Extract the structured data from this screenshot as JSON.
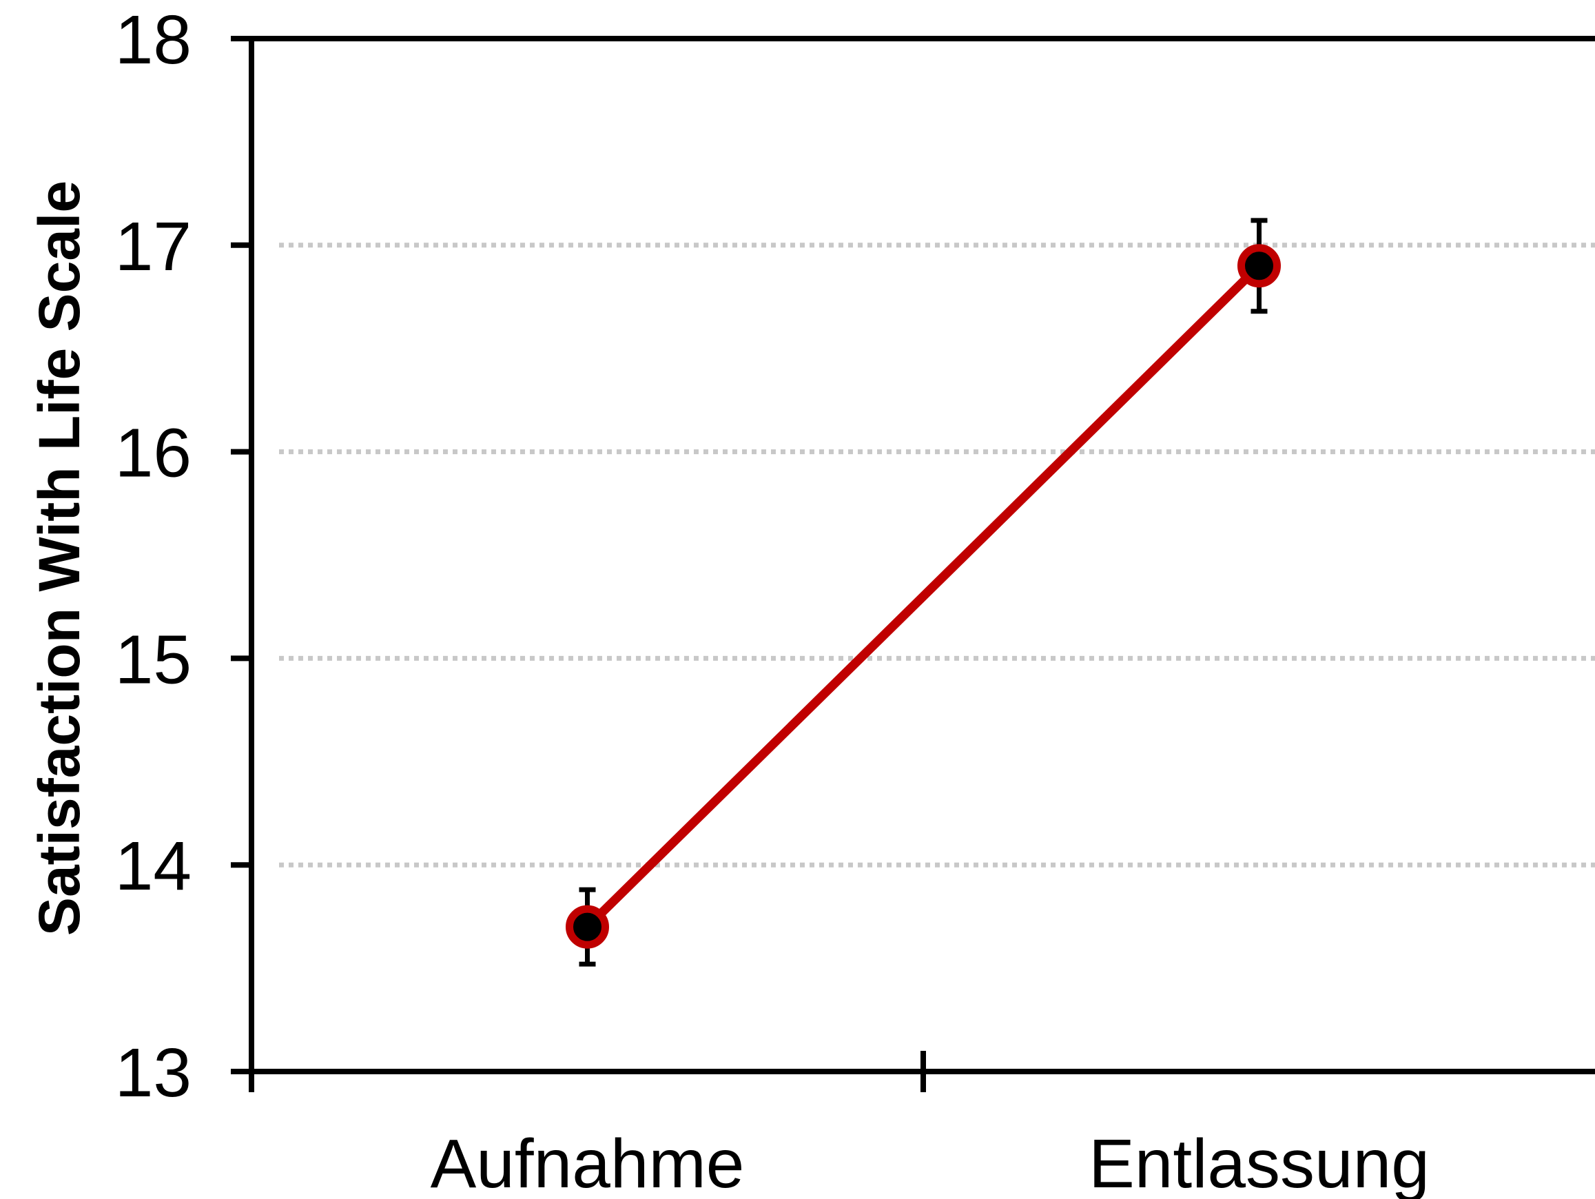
{
  "chart_data": {
    "type": "line",
    "title": "",
    "xlabel": "",
    "ylabel": "Satisfaction With Life Scale",
    "categories": [
      "Aufnahme",
      "Entlassung"
    ],
    "series": [
      {
        "values": [
          13.7,
          16.9
        ],
        "error": [
          0.18,
          0.22
        ],
        "color": "#c00000",
        "marker_fill": "#000000"
      }
    ],
    "ylim": [
      13,
      18
    ],
    "yticks": [
      13,
      14,
      15,
      16,
      17,
      18
    ],
    "ytick_labels": [
      "13",
      "14",
      "15",
      "16",
      "17",
      "18"
    ],
    "grid": true,
    "grid_style": "dotted horizontal",
    "grid_color": "#c8c8c8",
    "axis_color": "#000000",
    "legend": "none"
  }
}
